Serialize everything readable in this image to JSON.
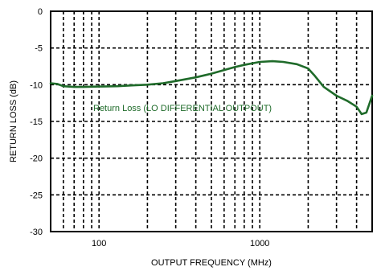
{
  "chart_data": {
    "type": "line",
    "title": "",
    "xlabel": "OUTPUT FREQUENCY (MHz)",
    "ylabel": "RETURN LOSS (dB)",
    "x_scale": "log",
    "xlim": [
      50,
      5000
    ],
    "ylim": [
      -30,
      0
    ],
    "x_tick_labels": [
      {
        "value": 100,
        "label": "100"
      },
      {
        "value": 1000,
        "label": "1000"
      }
    ],
    "y_ticks": [
      0,
      -5,
      -10,
      -15,
      -20,
      -25,
      -30
    ],
    "y_tick_labels": [
      "0",
      "-5",
      "-10",
      "-15",
      "-20",
      "-25",
      "-30"
    ],
    "grid": true,
    "series": [
      {
        "name": "Return Loss  (LO DIFFERENTIAL OUTPOUT)",
        "color": "#1f6b2a",
        "x": [
          50,
          55,
          60,
          70,
          80,
          100,
          130,
          160,
          200,
          250,
          300,
          400,
          500,
          600,
          700,
          800,
          1000,
          1200,
          1400,
          1700,
          2000,
          2200,
          2500,
          3000,
          3500,
          4000,
          4300,
          4600,
          5000
        ],
        "y": [
          -9.8,
          -9.9,
          -10.2,
          -10.3,
          -10.3,
          -10.25,
          -10.2,
          -10.1,
          -10.0,
          -9.8,
          -9.5,
          -9.0,
          -8.5,
          -8.0,
          -7.6,
          -7.3,
          -6.9,
          -6.8,
          -6.9,
          -7.2,
          -7.8,
          -8.8,
          -10.3,
          -11.5,
          -12.2,
          -13.0,
          -14.0,
          -13.8,
          -11.5
        ]
      }
    ]
  }
}
